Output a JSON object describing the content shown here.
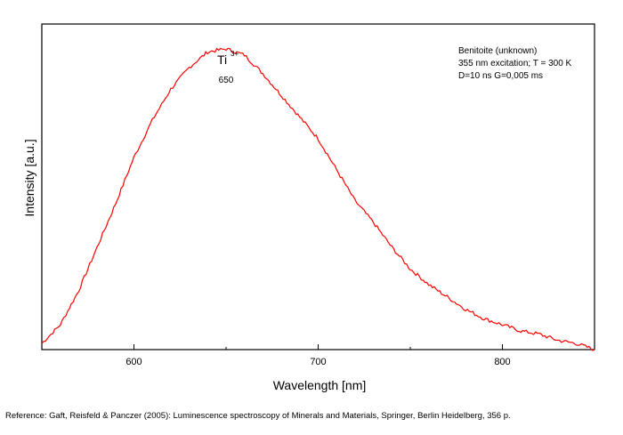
{
  "chart_data": {
    "type": "line",
    "title": "",
    "xlabel": "Wavelength [nm]",
    "ylabel": "Intensity [a.u.]",
    "xlim": [
      550,
      850
    ],
    "ylim": [
      0,
      1.05
    ],
    "x_ticks": [
      600,
      700,
      800
    ],
    "x_tick_labels": [
      "600",
      "700",
      "800"
    ],
    "y_ticks_labeled": false,
    "grid": false,
    "line_color": "#ff0000",
    "series": [
      {
        "x": [
          550,
          560,
          570,
          580,
          590,
          600,
          610,
          620,
          630,
          640,
          650,
          660,
          670,
          680,
          690,
          700,
          710,
          720,
          730,
          740,
          750,
          760,
          770,
          780,
          790,
          800,
          810,
          820,
          830,
          840,
          850
        ],
        "values": [
          0.02,
          0.08,
          0.19,
          0.33,
          0.47,
          0.62,
          0.74,
          0.84,
          0.91,
          0.96,
          0.97,
          0.95,
          0.89,
          0.82,
          0.75,
          0.68,
          0.58,
          0.48,
          0.41,
          0.33,
          0.26,
          0.21,
          0.17,
          0.13,
          0.1,
          0.08,
          0.06,
          0.05,
          0.03,
          0.02,
          0.0
        ]
      }
    ],
    "annotations": {
      "ion_label": "Ti",
      "ion_charge": "3+",
      "peak_label": "650",
      "peak_x": 650
    },
    "info_box": {
      "placement": "top-right",
      "line1": "Benitoite (unknown)",
      "line2": "355 nm excitation; T = 300 K",
      "line3": "D=10 ns G=0,005 ms"
    }
  },
  "reference": "Reference: Gaft, Reisfeld & Panczer (2005): Luminescence spectroscopy of Minerals and Materials, Springer, Berlin Heidelberg, 356 p."
}
